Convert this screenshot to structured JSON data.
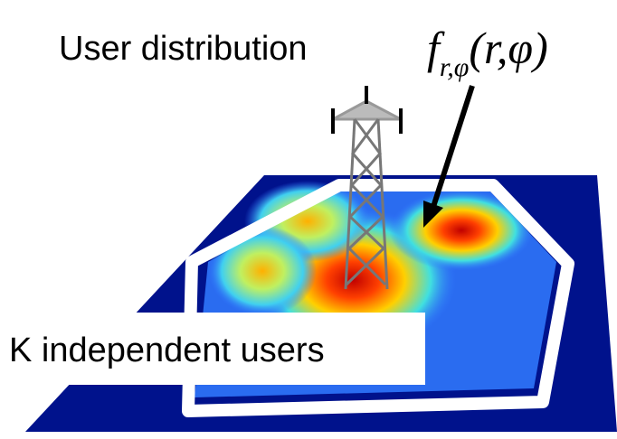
{
  "labels": {
    "user_distribution": "User distribution",
    "users": "K independent users"
  },
  "formula": {
    "base": "f",
    "subscript": "r,φ",
    "args": "(r,φ)"
  }
}
